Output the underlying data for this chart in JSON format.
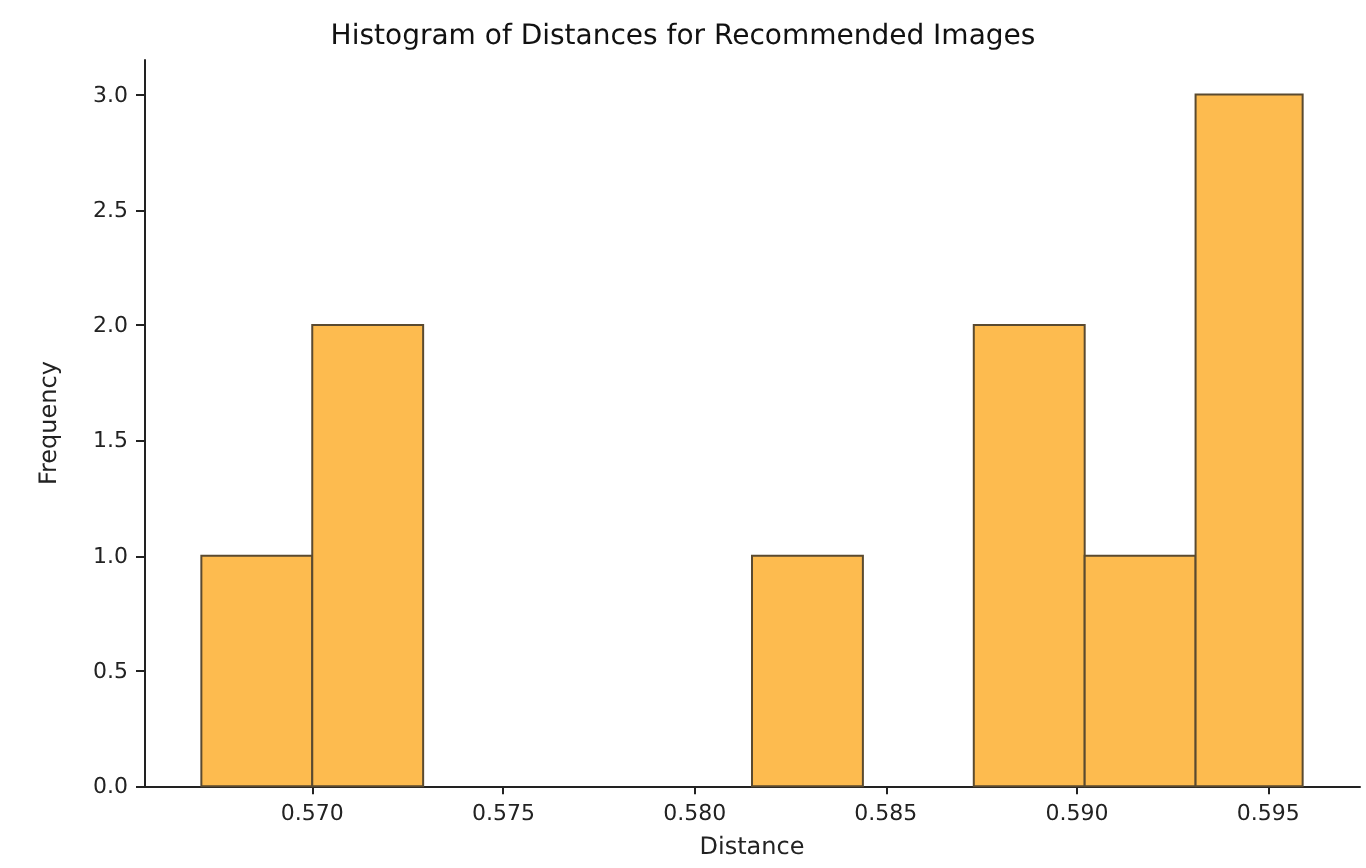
{
  "chart_data": {
    "type": "histogram",
    "title": "Histogram of Distances for Recommended Images",
    "xlabel": "Distance",
    "ylabel": "Frequency",
    "bins": [
      0.5671,
      0.57,
      0.5729,
      0.5815,
      0.5844,
      0.5873,
      0.5902,
      0.5931,
      0.5959
    ],
    "values": [
      1,
      2,
      0,
      1,
      0,
      2,
      1,
      3
    ],
    "color": "#fdbb4f",
    "xlim": [
      0.5656,
      0.5974
    ],
    "xticks": [
      {
        "value": 0.57,
        "label": "0.570"
      },
      {
        "value": 0.575,
        "label": "0.575"
      },
      {
        "value": 0.58,
        "label": "0.580"
      },
      {
        "value": 0.585,
        "label": "0.585"
      },
      {
        "value": 0.59,
        "label": "0.590"
      },
      {
        "value": 0.595,
        "label": "0.595"
      }
    ],
    "ylim": [
      0,
      3.15
    ],
    "yticks": [
      {
        "value": 0,
        "label": "0.0"
      },
      {
        "value": 0.5,
        "label": "0.5"
      },
      {
        "value": 1,
        "label": "1.0"
      },
      {
        "value": 1.5,
        "label": "1.5"
      },
      {
        "value": 2,
        "label": "2.0"
      },
      {
        "value": 2.5,
        "label": "2.5"
      },
      {
        "value": 3,
        "label": "3.0"
      }
    ],
    "grid": false
  }
}
